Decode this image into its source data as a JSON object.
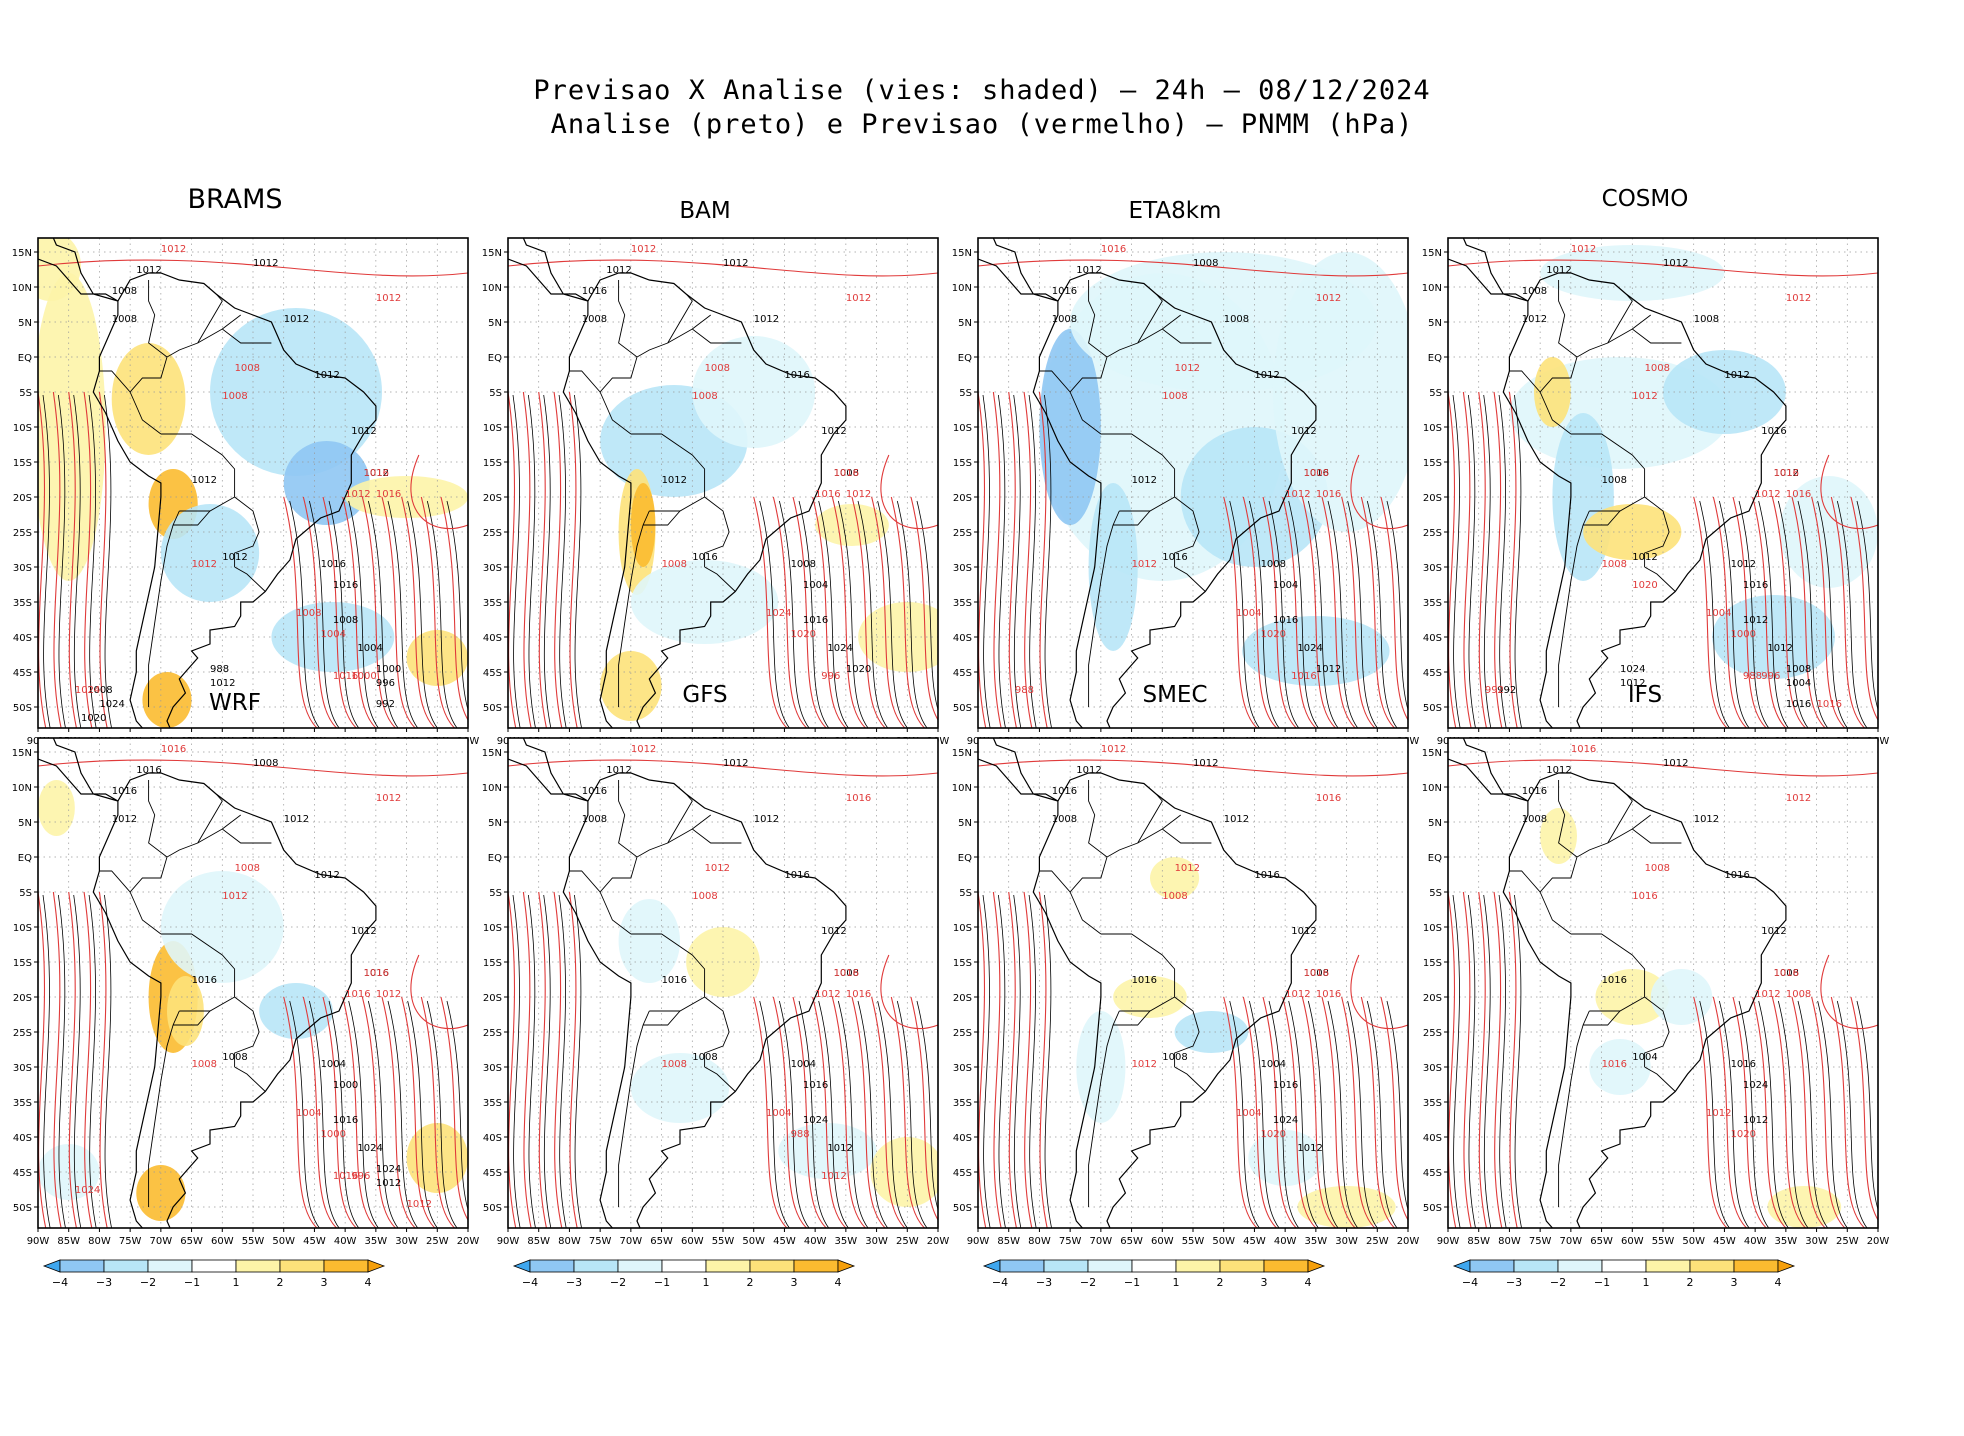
{
  "figure": {
    "title_line1": "Previsao X Analise (vies: shaded) — 24h — 08/12/2024",
    "title_line2": "Analise (preto) e Previsao (vermelho) — PNMM (hPa)"
  },
  "colors": {
    "analysis_contour": "#000000",
    "forecast_contour": "#e03a3a",
    "coastline": "#000000",
    "grid": "#9a9a9a",
    "bias_neg4": "#3fa7ef",
    "bias_neg3": "#8fc7f3",
    "bias_neg2": "#b8e6f7",
    "bias_neg1": "#dff6fb",
    "bias_0": "#ffffff",
    "bias_pos1": "#fdf4a8",
    "bias_pos2": "#fde27a",
    "bias_pos3": "#fbbb30",
    "bias_pos4": "#f59f0b"
  },
  "axes": {
    "lat_labels": [
      "15N",
      "10N",
      "5N",
      "EQ",
      "5S",
      "10S",
      "15S",
      "20S",
      "25S",
      "30S",
      "35S",
      "40S",
      "45S",
      "50S"
    ],
    "lon_labels": [
      "90W",
      "85W",
      "80W",
      "75W",
      "70W",
      "65W",
      "60W",
      "55W",
      "50W",
      "45W",
      "40W",
      "35W",
      "30W",
      "25W",
      "20W"
    ]
  },
  "colorbar": {
    "labels": [
      "−4",
      "−3",
      "−2",
      "−1",
      "1",
      "2",
      "3",
      "4"
    ]
  },
  "panels": [
    {
      "name": "BRAMS",
      "black_labels": [
        "1012",
        "1008",
        "1008",
        "1012",
        "1012",
        "1012",
        "1012",
        "1012",
        "1012",
        "1012",
        "1016",
        "1016",
        "1008",
        "1004",
        "1000",
        "996",
        "992",
        "988",
        "1012",
        "1008",
        "1024",
        "1020"
      ],
      "red_labels": [
        "1012",
        "1012",
        "1008",
        "1008",
        "1016",
        "1012",
        "1016",
        "1012",
        "1008",
        "1004",
        "1000",
        "1024",
        "1016"
      ]
    },
    {
      "name": "BAM",
      "black_labels": [
        "1012",
        "1016",
        "1008",
        "1012",
        "1012",
        "1016",
        "1012",
        "1008",
        "1012",
        "1016",
        "1008",
        "1004",
        "1016",
        "1024",
        "1020"
      ],
      "red_labels": [
        "1012",
        "1012",
        "1008",
        "1008",
        "1016",
        "1016",
        "1012",
        "1008",
        "1024",
        "1020",
        "996"
      ]
    },
    {
      "name": "ETA8km",
      "black_labels": [
        "1012",
        "1016",
        "1008",
        "1008",
        "1008",
        "1012",
        "1012",
        "1016",
        "1012",
        "1016",
        "1008",
        "1004",
        "1016",
        "1024",
        "1012"
      ],
      "red_labels": [
        "1016",
        "1012",
        "1012",
        "1008",
        "1008",
        "1012",
        "1016",
        "1012",
        "1004",
        "1020",
        "1016",
        "988"
      ]
    },
    {
      "name": "COSMO",
      "black_labels": [
        "1012",
        "1008",
        "1012",
        "1012",
        "1008",
        "1012",
        "1016",
        "1012",
        "1008",
        "1012",
        "1012",
        "1016",
        "1012",
        "1012",
        "1008",
        "1004",
        "1016",
        "1024",
        "1012",
        "992"
      ],
      "red_labels": [
        "1012",
        "1012",
        "1008",
        "1012",
        "1016",
        "1012",
        "1016",
        "1008",
        "1004",
        "1000",
        "996",
        "992",
        "988",
        "1016",
        "1020"
      ]
    },
    {
      "name": "WRF",
      "black_labels": [
        "1016",
        "1016",
        "1012",
        "1008",
        "1012",
        "1012",
        "1012",
        "1016",
        "1016",
        "1008",
        "1004",
        "1000",
        "1016",
        "1024",
        "1024",
        "1012"
      ],
      "red_labels": [
        "1016",
        "1012",
        "1008",
        "1012",
        "1016",
        "1016",
        "1012",
        "1008",
        "1004",
        "1000",
        "996",
        "1024",
        "1016",
        "1012"
      ]
    },
    {
      "name": "GFS",
      "black_labels": [
        "1012",
        "1016",
        "1008",
        "1012",
        "1012",
        "1016",
        "1012",
        "1008",
        "1016",
        "1008",
        "1004",
        "1016",
        "1024",
        "1012"
      ],
      "red_labels": [
        "1012",
        "1016",
        "1012",
        "1008",
        "1016",
        "1012",
        "1016",
        "1008",
        "1004",
        "988",
        "1012"
      ]
    },
    {
      "name": "SMEC",
      "black_labels": [
        "1012",
        "1016",
        "1008",
        "1012",
        "1012",
        "1016",
        "1012",
        "1008",
        "1016",
        "1008",
        "1004",
        "1016",
        "1024",
        "1012"
      ],
      "red_labels": [
        "1012",
        "1016",
        "1012",
        "1008",
        "1016",
        "1012",
        "1016",
        "1012",
        "1004",
        "1020"
      ]
    },
    {
      "name": "IFS",
      "black_labels": [
        "1012",
        "1016",
        "1008",
        "1012",
        "1012",
        "1016",
        "1012",
        "1008",
        "1016",
        "1004",
        "1016",
        "1024",
        "1012"
      ],
      "red_labels": [
        "1016",
        "1012",
        "1008",
        "1016",
        "1016",
        "1012",
        "1008",
        "1016",
        "1012",
        "1020"
      ]
    }
  ]
}
